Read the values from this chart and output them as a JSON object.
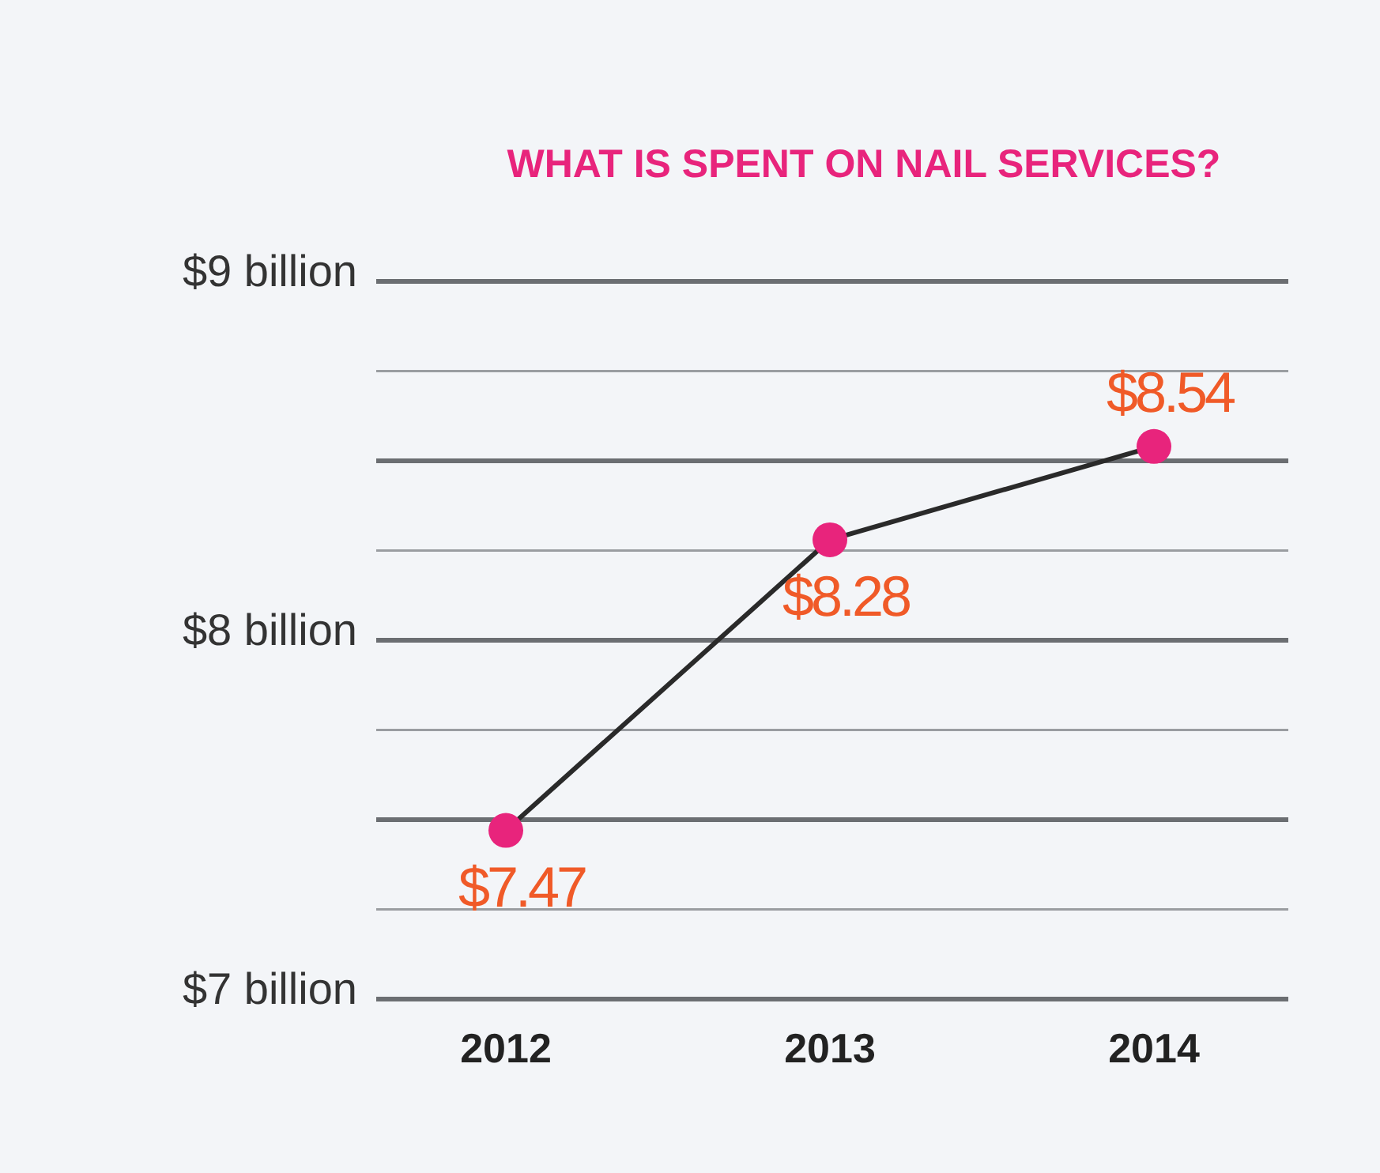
{
  "chart_data": {
    "type": "line",
    "title": "WHAT IS SPENT ON NAIL SERVICES?",
    "categories": [
      "2012",
      "2013",
      "2014"
    ],
    "series": [
      {
        "color": "#e8247c",
        "values": [
          7.47,
          8.28,
          8.54
        ],
        "value_labels": [
          "$7.47",
          "$8.28",
          "$8.54"
        ]
      }
    ],
    "ylim": [
      7,
      9
    ],
    "yticks": [
      {
        "value": 7,
        "label": "$7 billion"
      },
      {
        "value": 7.25,
        "label": null
      },
      {
        "value": 7.5,
        "label": null
      },
      {
        "value": 7.75,
        "label": null
      },
      {
        "value": 8,
        "label": "$8 billion"
      },
      {
        "value": 8.25,
        "label": null
      },
      {
        "value": 8.5,
        "label": null
      },
      {
        "value": 8.75,
        "label": null
      },
      {
        "value": 9,
        "label": "$9 billion"
      }
    ],
    "grid": "y",
    "marker": "circle",
    "line_style": "solid"
  }
}
